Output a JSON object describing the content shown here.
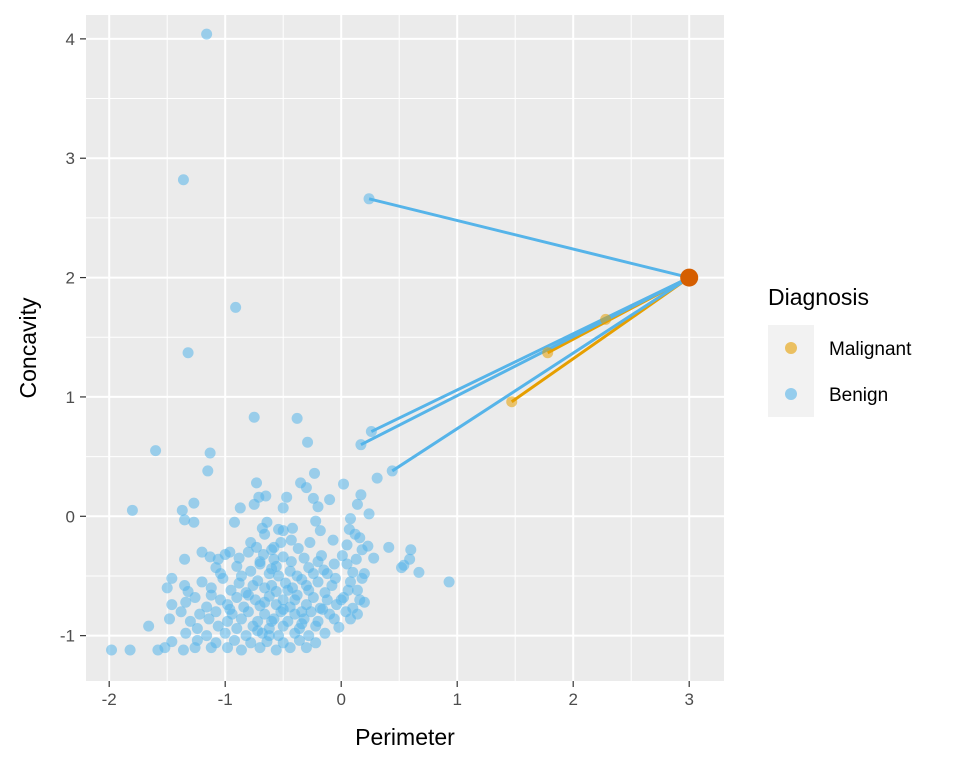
{
  "chart_data": {
    "type": "scatter",
    "xlabel": "Perimeter",
    "ylabel": "Concavity",
    "xlim": [
      -2.2,
      3.3
    ],
    "ylim": [
      -1.38,
      4.2
    ],
    "xticks": [
      -2,
      -1,
      0,
      1,
      2,
      3
    ],
    "yticks": [
      -1,
      0,
      1,
      2,
      3,
      4
    ],
    "xtick_labels": [
      "-2",
      "-1",
      "0",
      "1",
      "2",
      "3"
    ],
    "ytick_labels": [
      "-1",
      "0",
      "1",
      "2",
      "3",
      "4"
    ],
    "grid": true,
    "legend": {
      "title": "Diagnosis",
      "placement": "right",
      "entries": [
        {
          "label": "Malignant",
          "color": "#E69F00"
        },
        {
          "label": "Benign",
          "color": "#56B4E9"
        }
      ]
    },
    "new_point": {
      "x": 3.0,
      "y": 2.0,
      "color": "#D55E00"
    },
    "neighbor_lines": [
      {
        "x": 0.24,
        "y": 2.66,
        "class": "Benign"
      },
      {
        "x": 2.28,
        "y": 1.65,
        "class": "Malignant"
      },
      {
        "x": 1.78,
        "y": 1.37,
        "class": "Malignant"
      },
      {
        "x": 1.47,
        "y": 0.96,
        "class": "Malignant"
      },
      {
        "x": 0.26,
        "y": 0.71,
        "class": "Benign"
      },
      {
        "x": 0.17,
        "y": 0.6,
        "class": "Benign"
      },
      {
        "x": 0.44,
        "y": 0.38,
        "class": "Benign"
      }
    ],
    "series": [
      {
        "name": "Malignant",
        "color": "#E69F00",
        "points": [
          [
            2.28,
            1.65
          ],
          [
            1.78,
            1.37
          ],
          [
            1.47,
            0.96
          ]
        ]
      },
      {
        "name": "Benign",
        "color": "#56B4E9",
        "points": [
          [
            -1.16,
            4.04
          ],
          [
            -1.36,
            2.82
          ],
          [
            0.24,
            2.66
          ],
          [
            -0.91,
            1.75
          ],
          [
            -1.32,
            1.37
          ],
          [
            -0.75,
            0.83
          ],
          [
            -0.38,
            0.82
          ],
          [
            -0.29,
            0.62
          ],
          [
            0.26,
            0.71
          ],
          [
            0.17,
            0.6
          ],
          [
            -1.6,
            0.55
          ],
          [
            -1.13,
            0.53
          ],
          [
            -1.15,
            0.38
          ],
          [
            0.44,
            0.38
          ],
          [
            0.31,
            0.32
          ],
          [
            -0.23,
            0.36
          ],
          [
            -0.3,
            0.24
          ],
          [
            -0.73,
            0.28
          ],
          [
            -0.35,
            0.28
          ],
          [
            0.02,
            0.27
          ],
          [
            -1.27,
            0.11
          ],
          [
            -1.8,
            0.05
          ],
          [
            -1.37,
            0.05
          ],
          [
            0.17,
            0.18
          ],
          [
            -0.71,
            0.16
          ],
          [
            -0.24,
            0.15
          ],
          [
            -0.65,
            0.17
          ],
          [
            -0.47,
            0.16
          ],
          [
            -0.1,
            0.14
          ],
          [
            -0.75,
            0.1
          ],
          [
            -0.5,
            0.07
          ],
          [
            -0.87,
            0.07
          ],
          [
            -0.2,
            0.08
          ],
          [
            0.14,
            0.1
          ],
          [
            0.24,
            0.02
          ],
          [
            -0.92,
            -0.05
          ],
          [
            -1.27,
            -0.05
          ],
          [
            -1.35,
            -0.03
          ],
          [
            -0.64,
            -0.05
          ],
          [
            -0.22,
            -0.04
          ],
          [
            0.08,
            -0.02
          ],
          [
            -0.54,
            -0.11
          ],
          [
            -0.42,
            -0.1
          ],
          [
            0.07,
            -0.11
          ],
          [
            -0.5,
            -0.12
          ],
          [
            -0.18,
            -0.12
          ],
          [
            -0.66,
            -0.15
          ],
          [
            0.12,
            -0.15
          ],
          [
            0.16,
            -0.18
          ],
          [
            -0.78,
            -0.22
          ],
          [
            -0.43,
            -0.2
          ],
          [
            -0.27,
            -0.22
          ],
          [
            -0.07,
            -0.2
          ],
          [
            0.05,
            -0.24
          ],
          [
            0.23,
            -0.25
          ],
          [
            -0.73,
            -0.26
          ],
          [
            -0.58,
            -0.26
          ],
          [
            -1.2,
            -0.3
          ],
          [
            -0.96,
            -0.3
          ],
          [
            -0.6,
            -0.28
          ],
          [
            -0.37,
            -0.27
          ],
          [
            0.18,
            -0.28
          ],
          [
            0.41,
            -0.26
          ],
          [
            -1.0,
            -0.32
          ],
          [
            -0.88,
            -0.35
          ],
          [
            -0.67,
            -0.32
          ],
          [
            -0.5,
            -0.34
          ],
          [
            -0.32,
            -0.35
          ],
          [
            -0.17,
            -0.33
          ],
          [
            0.01,
            -0.33
          ],
          [
            0.13,
            -0.36
          ],
          [
            0.28,
            -0.35
          ],
          [
            0.6,
            -0.28
          ],
          [
            0.59,
            -0.36
          ],
          [
            -1.35,
            -0.36
          ],
          [
            -1.13,
            -0.34
          ],
          [
            -1.06,
            -0.36
          ],
          [
            -0.7,
            -0.38
          ],
          [
            -0.43,
            -0.38
          ],
          [
            -0.2,
            -0.38
          ],
          [
            -0.06,
            -0.4
          ],
          [
            0.05,
            -0.4
          ],
          [
            0.54,
            -0.41
          ],
          [
            0.52,
            -0.43
          ],
          [
            0.67,
            -0.47
          ],
          [
            -0.56,
            -0.42
          ],
          [
            -0.28,
            -0.43
          ],
          [
            -0.15,
            -0.45
          ],
          [
            -0.9,
            -0.42
          ],
          [
            -0.78,
            -0.46
          ],
          [
            -1.08,
            -0.43
          ],
          [
            0.1,
            -0.47
          ],
          [
            0.2,
            -0.48
          ],
          [
            -0.62,
            -0.48
          ],
          [
            -0.38,
            -0.5
          ],
          [
            -0.12,
            -0.48
          ],
          [
            0.93,
            -0.55
          ],
          [
            -1.46,
            -0.52
          ],
          [
            -1.35,
            -0.58
          ],
          [
            -1.2,
            -0.55
          ],
          [
            -1.02,
            -0.52
          ],
          [
            -0.88,
            -0.56
          ],
          [
            -0.72,
            -0.54
          ],
          [
            -0.48,
            -0.56
          ],
          [
            -0.34,
            -0.53
          ],
          [
            -0.2,
            -0.55
          ],
          [
            -0.05,
            -0.52
          ],
          [
            0.08,
            -0.55
          ],
          [
            0.18,
            -0.52
          ],
          [
            -1.5,
            -0.6
          ],
          [
            -1.32,
            -0.63
          ],
          [
            -1.12,
            -0.6
          ],
          [
            -0.95,
            -0.62
          ],
          [
            -0.82,
            -0.64
          ],
          [
            -0.66,
            -0.6
          ],
          [
            -0.56,
            -0.63
          ],
          [
            -0.42,
            -0.6
          ],
          [
            -0.28,
            -0.62
          ],
          [
            -0.14,
            -0.64
          ],
          [
            0.06,
            -0.62
          ],
          [
            0.14,
            -0.62
          ],
          [
            -0.76,
            -0.58
          ],
          [
            -0.6,
            -0.58
          ],
          [
            -1.26,
            -0.68
          ],
          [
            -1.04,
            -0.7
          ],
          [
            -0.9,
            -0.68
          ],
          [
            -0.74,
            -0.7
          ],
          [
            -0.62,
            -0.67
          ],
          [
            -0.5,
            -0.7
          ],
          [
            -0.38,
            -0.66
          ],
          [
            -0.24,
            -0.68
          ],
          [
            -0.12,
            -0.7
          ],
          [
            0.02,
            -0.68
          ],
          [
            0.16,
            -0.7
          ],
          [
            -1.46,
            -0.74
          ],
          [
            -1.34,
            -0.72
          ],
          [
            -1.16,
            -0.76
          ],
          [
            -0.98,
            -0.74
          ],
          [
            -0.84,
            -0.76
          ],
          [
            -0.7,
            -0.75
          ],
          [
            -0.56,
            -0.74
          ],
          [
            -0.44,
            -0.76
          ],
          [
            -0.3,
            -0.74
          ],
          [
            -0.18,
            -0.77
          ],
          [
            -0.04,
            -0.74
          ],
          [
            0.1,
            -0.77
          ],
          [
            0.2,
            -0.72
          ],
          [
            -1.38,
            -0.8
          ],
          [
            -1.22,
            -0.82
          ],
          [
            -1.08,
            -0.8
          ],
          [
            -0.94,
            -0.82
          ],
          [
            -0.8,
            -0.8
          ],
          [
            -0.66,
            -0.82
          ],
          [
            -0.52,
            -0.8
          ],
          [
            -0.4,
            -0.82
          ],
          [
            -0.26,
            -0.8
          ],
          [
            -0.1,
            -0.82
          ],
          [
            0.04,
            -0.8
          ],
          [
            0.14,
            -0.82
          ],
          [
            -1.48,
            -0.86
          ],
          [
            -1.3,
            -0.88
          ],
          [
            -1.14,
            -0.86
          ],
          [
            -0.98,
            -0.88
          ],
          [
            -0.86,
            -0.86
          ],
          [
            -0.72,
            -0.88
          ],
          [
            -0.58,
            -0.86
          ],
          [
            -0.46,
            -0.88
          ],
          [
            -0.32,
            -0.86
          ],
          [
            -0.2,
            -0.88
          ],
          [
            -0.06,
            -0.86
          ],
          [
            0.08,
            -0.86
          ],
          [
            -1.66,
            -0.92
          ],
          [
            -1.24,
            -0.94
          ],
          [
            -1.06,
            -0.92
          ],
          [
            -0.9,
            -0.94
          ],
          [
            -0.76,
            -0.92
          ],
          [
            -0.62,
            -0.94
          ],
          [
            -0.5,
            -0.92
          ],
          [
            -0.36,
            -0.94
          ],
          [
            -0.22,
            -0.92
          ],
          [
            -0.02,
            -0.93
          ],
          [
            -1.34,
            -0.98
          ],
          [
            -1.16,
            -1.0
          ],
          [
            -1.0,
            -0.98
          ],
          [
            -0.82,
            -1.0
          ],
          [
            -0.68,
            -0.98
          ],
          [
            -0.54,
            -1.0
          ],
          [
            -0.4,
            -0.98
          ],
          [
            -0.28,
            -1.0
          ],
          [
            -0.14,
            -0.98
          ],
          [
            -1.46,
            -1.05
          ],
          [
            -1.24,
            -1.04
          ],
          [
            -1.08,
            -1.06
          ],
          [
            -0.92,
            -1.04
          ],
          [
            -0.78,
            -1.06
          ],
          [
            -0.64,
            -1.05
          ],
          [
            -0.5,
            -1.06
          ],
          [
            -0.36,
            -1.04
          ],
          [
            -0.22,
            -1.06
          ],
          [
            -1.98,
            -1.12
          ],
          [
            -1.82,
            -1.12
          ],
          [
            -1.58,
            -1.12
          ],
          [
            -1.52,
            -1.1
          ],
          [
            -1.36,
            -1.12
          ],
          [
            -1.26,
            -1.1
          ],
          [
            -1.12,
            -1.1
          ],
          [
            -0.98,
            -1.1
          ],
          [
            -0.86,
            -1.12
          ],
          [
            -0.7,
            -1.1
          ],
          [
            -0.56,
            -1.12
          ],
          [
            -0.44,
            -1.1
          ],
          [
            -0.3,
            -1.1
          ],
          [
            -0.6,
            -0.44
          ],
          [
            -0.54,
            -0.5
          ],
          [
            -0.46,
            -0.62
          ],
          [
            -0.66,
            -0.72
          ],
          [
            -0.86,
            -0.5
          ],
          [
            -0.7,
            -0.4
          ],
          [
            -0.4,
            -0.7
          ],
          [
            -0.34,
            -0.8
          ],
          [
            -0.6,
            -0.88
          ],
          [
            -0.8,
            -0.66
          ],
          [
            -0.5,
            -0.78
          ],
          [
            -0.44,
            -0.46
          ],
          [
            -0.3,
            -0.58
          ],
          [
            -0.24,
            -0.48
          ],
          [
            -0.08,
            -0.58
          ],
          [
            0.0,
            -0.7
          ],
          [
            -0.16,
            -0.78
          ],
          [
            -0.72,
            -0.96
          ],
          [
            -0.96,
            -0.78
          ],
          [
            -1.12,
            -0.66
          ],
          [
            -0.62,
            -1.0
          ],
          [
            -0.34,
            -0.9
          ],
          [
            -1.04,
            -0.48
          ],
          [
            -0.58,
            -0.36
          ],
          [
            -0.8,
            -0.3
          ],
          [
            -0.52,
            -0.22
          ],
          [
            -0.68,
            -0.1
          ]
        ]
      }
    ]
  }
}
